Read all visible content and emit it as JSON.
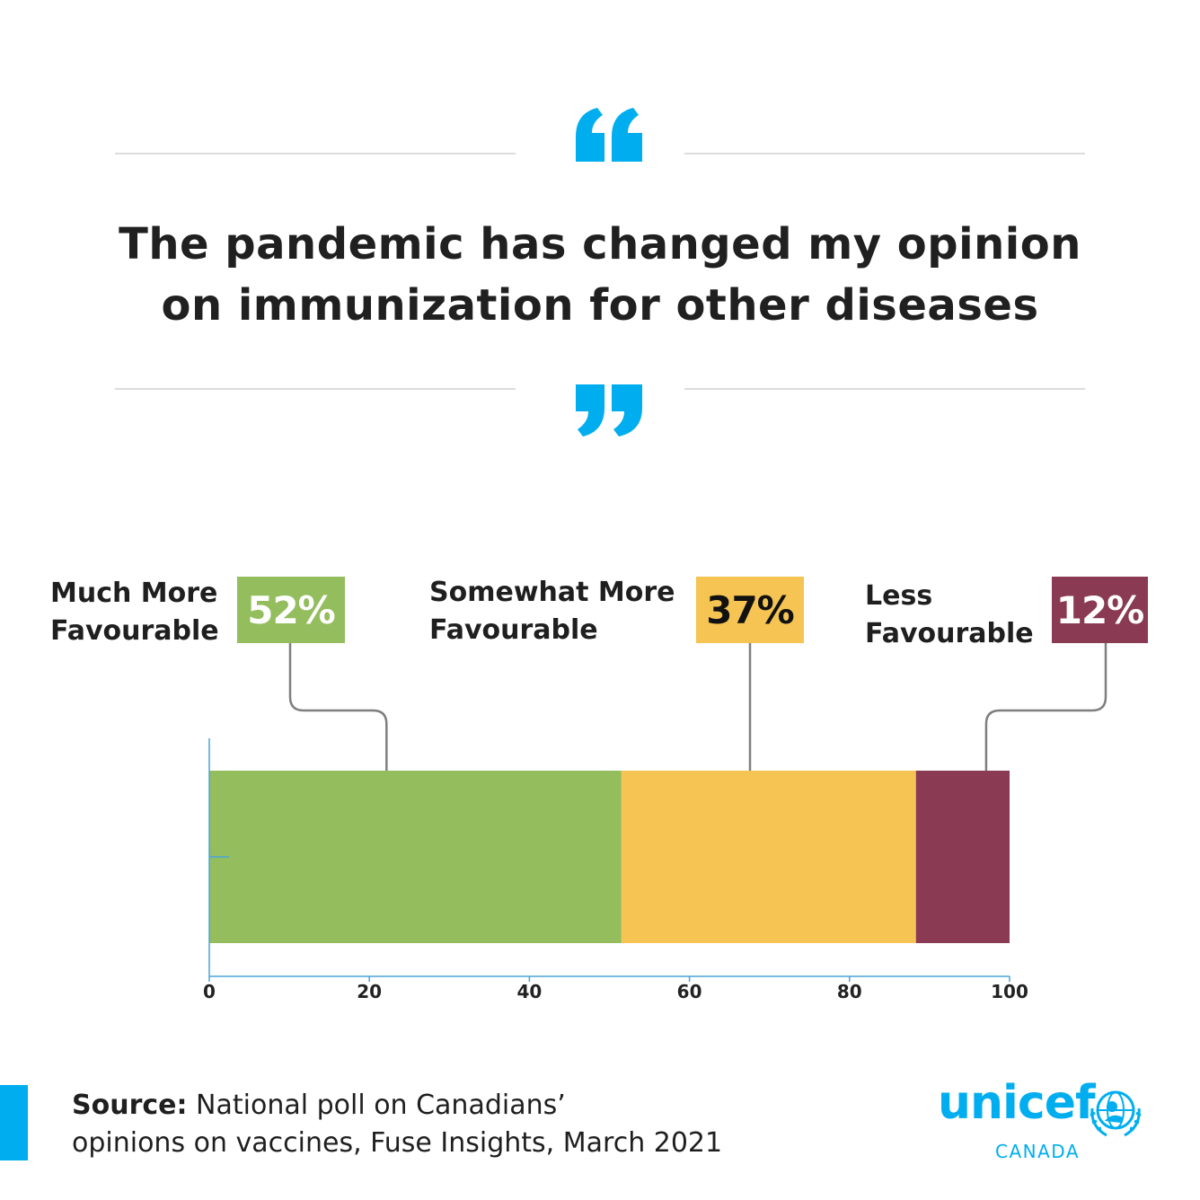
{
  "headline": {
    "line1": "The pandemic has changed my opinion",
    "line2": "on immunization for other diseases"
  },
  "colors": {
    "accent": "#00aeef",
    "green": "#94bd5e",
    "yellow": "#f5c452",
    "maroon": "#8a3a53",
    "axis": "#4aa3d9",
    "connector": "#7f7f7f"
  },
  "labels": [
    {
      "line1": "Much More",
      "line2": "Favourable",
      "percent": "52%"
    },
    {
      "line1": "Somewhat More",
      "line2": "Favourable",
      "percent": "37%"
    },
    {
      "line1": "Less",
      "line2": "Favourable",
      "percent": "12%"
    }
  ],
  "chart_data": {
    "type": "bar",
    "orientation": "horizontal",
    "stacked": true,
    "title": "The pandemic has changed my opinion on immunization for other diseases",
    "categories": [
      ""
    ],
    "series": [
      {
        "name": "Much More Favourable",
        "values": [
          51.5
        ]
      },
      {
        "name": "Somewhat More Favourable",
        "values": [
          36.8
        ]
      },
      {
        "name": "Less Favourable",
        "values": [
          11.7
        ]
      }
    ],
    "data_labels": [
      "52%",
      "37%",
      "12%"
    ],
    "xlim": [
      0,
      100
    ],
    "xticks": [
      "0",
      "20",
      "40",
      "60",
      "80",
      "100"
    ],
    "xlabel": "",
    "ylabel": "",
    "grid": false
  },
  "source": {
    "bold": "Source:",
    "line1": "National poll on Canadians’",
    "line2": "opinions on vaccines, Fuse Insights, March 2021"
  },
  "logo": {
    "word": "unicef",
    "sub": "CANADA"
  }
}
